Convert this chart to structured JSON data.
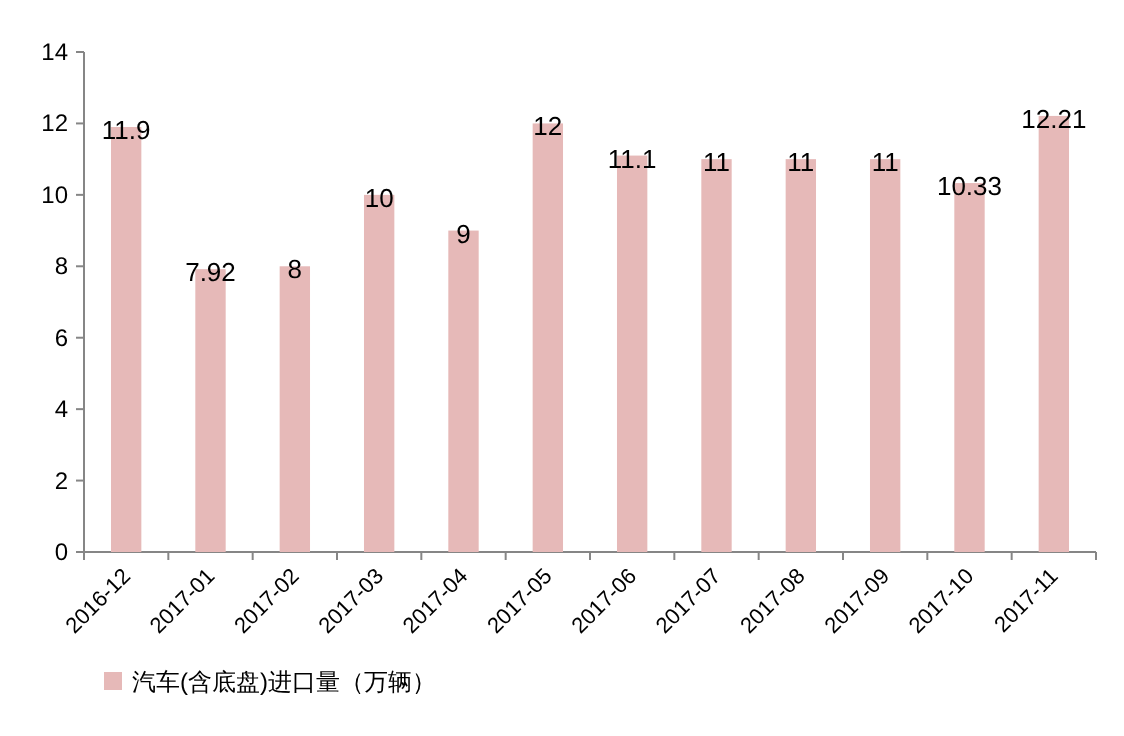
{
  "chart_data": {
    "type": "bar",
    "categories": [
      "2016-12",
      "2017-01",
      "2017-02",
      "2017-03",
      "2017-04",
      "2017-05",
      "2017-06",
      "2017-07",
      "2017-08",
      "2017-09",
      "2017-10",
      "2017-11"
    ],
    "series": [
      {
        "name": "汽车(含底盘)进口量（万辆）",
        "color": "#e6b9b8",
        "values": [
          11.9,
          7.92,
          8,
          10,
          9,
          12,
          11.1,
          11,
          11,
          11,
          10.33,
          12.21
        ]
      }
    ],
    "ylim": [
      0,
      14
    ],
    "yticks": [
      0,
      2,
      4,
      6,
      8,
      10,
      12,
      14
    ],
    "data_labels": true,
    "legend": "bottom"
  }
}
